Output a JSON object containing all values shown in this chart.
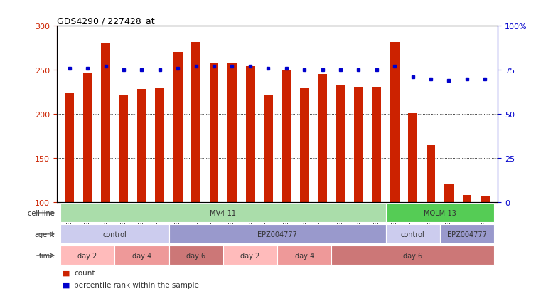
{
  "title": "GDS4290 / 227428_at",
  "samples": [
    "GSM739151",
    "GSM739152",
    "GSM739153",
    "GSM739157",
    "GSM739158",
    "GSM739159",
    "GSM739163",
    "GSM739164",
    "GSM739165",
    "GSM739148",
    "GSM739149",
    "GSM739150",
    "GSM739154",
    "GSM739155",
    "GSM739156",
    "GSM739160",
    "GSM739161",
    "GSM739162",
    "GSM739169",
    "GSM739170",
    "GSM739171",
    "GSM739166",
    "GSM739167",
    "GSM739168"
  ],
  "bar_values": [
    224,
    246,
    281,
    221,
    228,
    229,
    270,
    282,
    257,
    257,
    254,
    222,
    249,
    229,
    245,
    233,
    231,
    231,
    282,
    201,
    165,
    120,
    108,
    107
  ],
  "percentile_values": [
    76,
    76,
    77,
    75,
    75,
    75,
    76,
    77,
    77,
    77,
    77,
    76,
    76,
    75,
    75,
    75,
    75,
    75,
    77,
    71,
    70,
    69,
    70,
    70
  ],
  "bar_color": "#cc2200",
  "percentile_color": "#0000cc",
  "ylim_left": [
    100,
    300
  ],
  "ylim_right": [
    0,
    100
  ],
  "yticks_left": [
    100,
    150,
    200,
    250,
    300
  ],
  "ytick_labels_left": [
    "100",
    "150",
    "200",
    "250",
    "300"
  ],
  "yticks_right": [
    0,
    25,
    50,
    75,
    100
  ],
  "ytick_labels_right": [
    "0",
    "25",
    "50",
    "75",
    "100%"
  ],
  "grid_values": [
    150,
    200,
    250
  ],
  "cell_line_groups": [
    {
      "label": "MV4-11",
      "start": 0,
      "end": 18,
      "color": "#aaddaa"
    },
    {
      "label": "MOLM-13",
      "start": 18,
      "end": 24,
      "color": "#55cc55"
    }
  ],
  "agent_groups": [
    {
      "label": "control",
      "start": 0,
      "end": 6,
      "color": "#ccccee"
    },
    {
      "label": "EPZ004777",
      "start": 6,
      "end": 18,
      "color": "#9999cc"
    },
    {
      "label": "control",
      "start": 18,
      "end": 21,
      "color": "#ccccee"
    },
    {
      "label": "EPZ004777",
      "start": 21,
      "end": 24,
      "color": "#9999cc"
    }
  ],
  "time_groups": [
    {
      "label": "day 2",
      "start": 0,
      "end": 3,
      "color": "#ffbbbb"
    },
    {
      "label": "day 4",
      "start": 3,
      "end": 6,
      "color": "#ee9999"
    },
    {
      "label": "day 6",
      "start": 6,
      "end": 9,
      "color": "#cc7777"
    },
    {
      "label": "day 2",
      "start": 9,
      "end": 12,
      "color": "#ffbbbb"
    },
    {
      "label": "day 4",
      "start": 12,
      "end": 15,
      "color": "#ee9999"
    },
    {
      "label": "day 6",
      "start": 15,
      "end": 24,
      "color": "#cc7777"
    }
  ],
  "row_labels": [
    "cell line",
    "agent",
    "time"
  ],
  "bg_color": "#ffffff",
  "plot_bg_color": "#ffffff",
  "axis_color_left": "#cc2200",
  "axis_color_right": "#0000cc"
}
